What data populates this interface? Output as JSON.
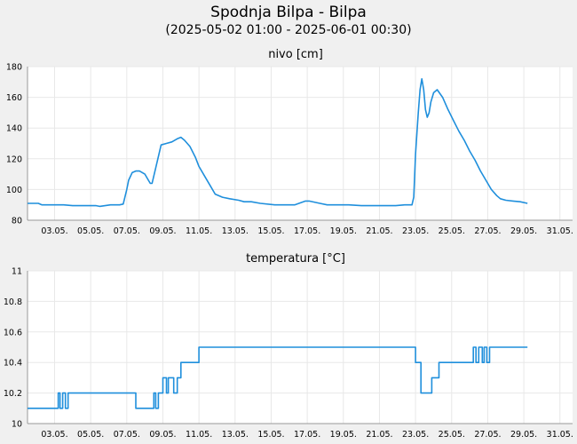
{
  "header": {
    "title": "Spodnja Bilpa - Bilpa",
    "period": "(2025-05-02 01:00 - 2025-06-01 00:30)"
  },
  "colors": {
    "series": "#1f8fdc",
    "grid": "#e8e8e8",
    "background": "#f0f0f0",
    "plot_background": "#ffffff"
  },
  "chart_data": [
    {
      "type": "line",
      "title": "nivo [cm]",
      "xlabel": "",
      "ylabel": "",
      "xlim": [
        1.5,
        31.7
      ],
      "ylim": [
        80,
        180
      ],
      "yticks": [
        80,
        100,
        120,
        140,
        160,
        180
      ],
      "xticks": [
        3,
        5,
        7,
        9,
        11,
        13,
        15,
        17,
        19,
        21,
        23,
        25,
        27,
        29,
        31
      ],
      "xtick_labels": [
        "03.05.",
        "05.05.",
        "07.05.",
        "09.05.",
        "11.05.",
        "13.05.",
        "15.05.",
        "17.05.",
        "19.05.",
        "21.05.",
        "23.05.",
        "25.05.",
        "27.05.",
        "29.05.",
        "31.05."
      ],
      "grid": true,
      "series": [
        {
          "x": [
            1.5,
            2.1,
            2.3,
            3.5,
            4.0,
            5.3,
            5.5,
            6.1,
            6.6,
            6.8,
            7.0,
            7.1,
            7.3,
            7.5,
            7.7,
            8.0,
            8.2,
            8.3,
            8.4,
            8.6,
            8.9,
            9.2,
            9.5,
            9.8,
            10.0,
            10.2,
            10.5,
            10.8,
            11.0,
            11.3,
            11.6,
            11.9,
            12.3,
            12.7,
            13.2,
            13.5,
            13.9,
            14.4,
            15.2,
            15.6,
            16.0,
            16.3,
            16.9,
            17.1,
            17.7,
            18.1,
            18.7,
            19.3,
            20.0,
            21.0,
            21.9,
            22.4,
            22.6,
            22.8,
            22.9,
            23.0,
            23.15,
            23.25,
            23.35,
            23.45,
            23.55,
            23.65,
            23.75,
            23.85,
            24.0,
            24.2,
            24.5,
            24.8,
            25.1,
            25.4,
            25.7,
            26.0,
            26.3,
            26.6,
            26.9,
            27.2,
            27.5,
            27.7,
            28.0,
            28.4,
            28.8,
            29.2
          ],
          "y": [
            91,
            91,
            90,
            90,
            89.5,
            89.5,
            89,
            90,
            90,
            90.5,
            100,
            106,
            111,
            112,
            112,
            110,
            106,
            104,
            104,
            114,
            129,
            130,
            131,
            133,
            134,
            132,
            128,
            121,
            115,
            109,
            103,
            97,
            95,
            94,
            93,
            92,
            92,
            91,
            90,
            90,
            90,
            90,
            92.5,
            92.5,
            91,
            90,
            90,
            90,
            89.5,
            89.5,
            89.5,
            90,
            90,
            90,
            95,
            123,
            150,
            165,
            172,
            165,
            152,
            147,
            150,
            157,
            163,
            165,
            160,
            152,
            145,
            138,
            132,
            125,
            119,
            112,
            106,
            100,
            96,
            94,
            93,
            92.5,
            92,
            91
          ]
        }
      ]
    },
    {
      "type": "line",
      "title": "temperatura [°C]",
      "xlabel": "",
      "ylabel": "",
      "xlim": [
        1.5,
        31.7
      ],
      "ylim": [
        10,
        11
      ],
      "yticks": [
        10,
        10.2,
        10.4,
        10.6,
        10.8,
        11
      ],
      "ytick_labels": [
        "10",
        "10.2",
        "10.4",
        "10.6",
        "10.8",
        "11"
      ],
      "xticks": [
        3,
        5,
        7,
        9,
        11,
        13,
        15,
        17,
        19,
        21,
        23,
        25,
        27,
        29,
        31
      ],
      "xtick_labels": [
        "03.05.",
        "05.05.",
        "07.05.",
        "09.05.",
        "11.05.",
        "13.05.",
        "15.05.",
        "17.05.",
        "19.05.",
        "21.05.",
        "23.05.",
        "25.05.",
        "27.05.",
        "29.05.",
        "31.05."
      ],
      "grid": true,
      "series": [
        {
          "x": [
            1.5,
            3.2,
            3.2,
            3.3,
            3.3,
            3.45,
            3.45,
            3.6,
            3.6,
            3.75,
            3.75,
            3.9,
            3.9,
            7.5,
            7.5,
            8.5,
            8.5,
            8.6,
            8.6,
            8.75,
            8.75,
            9.0,
            9.0,
            9.2,
            9.2,
            9.3,
            9.3,
            9.6,
            9.6,
            9.8,
            9.8,
            10.0,
            10.0,
            10.1,
            10.1,
            11.0,
            11.0,
            23.0,
            23.0,
            23.3,
            23.3,
            23.9,
            23.9,
            24.3,
            24.3,
            26.2,
            26.2,
            26.35,
            26.35,
            26.5,
            26.5,
            26.7,
            26.7,
            26.8,
            26.8,
            26.95,
            26.95,
            27.1,
            27.1,
            29.2
          ],
          "y": [
            10.1,
            10.1,
            10.2,
            10.2,
            10.1,
            10.1,
            10.2,
            10.2,
            10.1,
            10.1,
            10.2,
            10.2,
            10.2,
            10.2,
            10.1,
            10.1,
            10.2,
            10.2,
            10.1,
            10.1,
            10.2,
            10.2,
            10.3,
            10.3,
            10.2,
            10.2,
            10.3,
            10.3,
            10.2,
            10.2,
            10.3,
            10.3,
            10.4,
            10.4,
            10.4,
            10.4,
            10.5,
            10.5,
            10.4,
            10.4,
            10.2,
            10.2,
            10.3,
            10.3,
            10.4,
            10.4,
            10.5,
            10.5,
            10.4,
            10.4,
            10.5,
            10.5,
            10.4,
            10.4,
            10.5,
            10.5,
            10.4,
            10.4,
            10.5,
            10.5
          ]
        }
      ]
    }
  ]
}
